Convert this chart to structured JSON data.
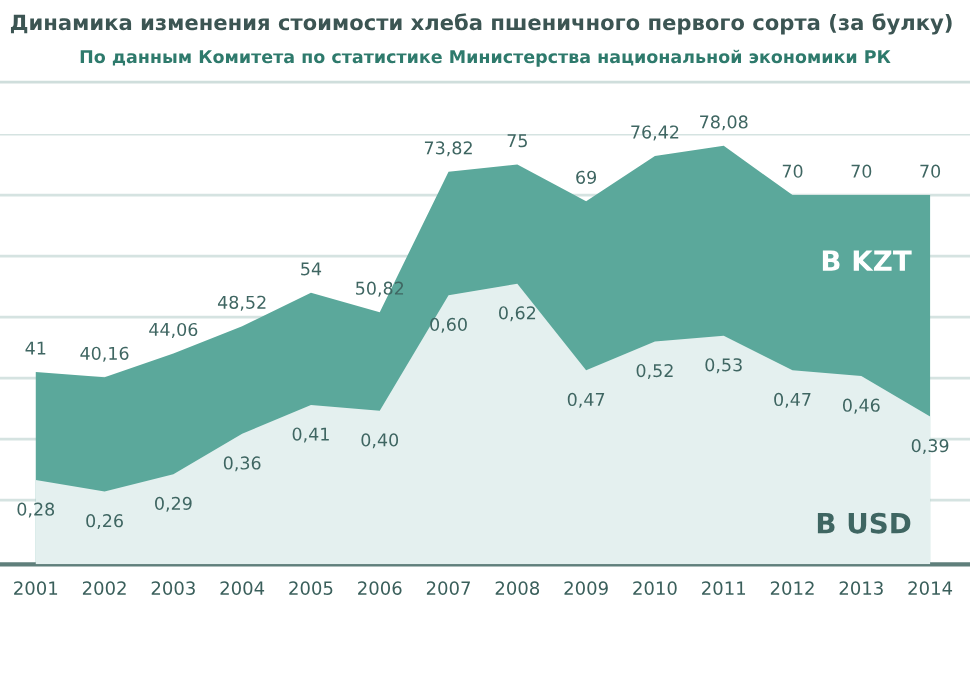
{
  "chart_data": {
    "type": "area",
    "title": "Динамика изменения стоимости хлеба пшеничного первого сорта (за булку)",
    "subtitle": "По данным Комитета по статистике Министерства национальной экономики РК",
    "categories": [
      "2001",
      "2002",
      "2003",
      "2004",
      "2005",
      "2006",
      "2007",
      "2008",
      "2009",
      "2010",
      "2011",
      "2012",
      "2013",
      "2014"
    ],
    "ylim": [
      9.5,
      80
    ],
    "yticks": [
      {
        "value": 20,
        "label": null
      },
      {
        "value": 30,
        "label": null
      },
      {
        "value": 40,
        "label": null
      },
      {
        "value": 50,
        "label": null
      },
      {
        "value": 60,
        "label": null
      },
      {
        "value": 70,
        "label": null
      },
      {
        "value": 80,
        "label": null
      }
    ],
    "tick_labels": "x",
    "grid": "y",
    "series": [
      {
        "name": "В KZT",
        "color": "#5ba89b",
        "values": [
          41,
          40.16,
          44.06,
          48.52,
          54,
          50.82,
          73.82,
          75,
          69,
          76.42,
          78.08,
          70,
          70,
          70
        ],
        "value_labels": [
          "41",
          "40,16",
          "44,06",
          "48,52",
          "54",
          "50,82",
          "73,82",
          "75",
          "69",
          "76,42",
          "78,08",
          "70",
          "70",
          "70"
        ]
      },
      {
        "name": "В USD",
        "axis": "y2",
        "color": "#e4f0ef",
        "values": [
          0.28,
          0.26,
          0.29,
          0.36,
          0.41,
          0.4,
          0.6,
          0.62,
          0.47,
          0.52,
          0.53,
          0.47,
          0.46,
          0.39
        ],
        "value_labels": [
          "0,28",
          "0,26",
          "0,29",
          "0,36",
          "0,41",
          "0,40",
          "0,60",
          "0,62",
          "0,47",
          "0,52",
          "0,53",
          "0,47",
          "0,46",
          "0,39"
        ]
      }
    ]
  }
}
